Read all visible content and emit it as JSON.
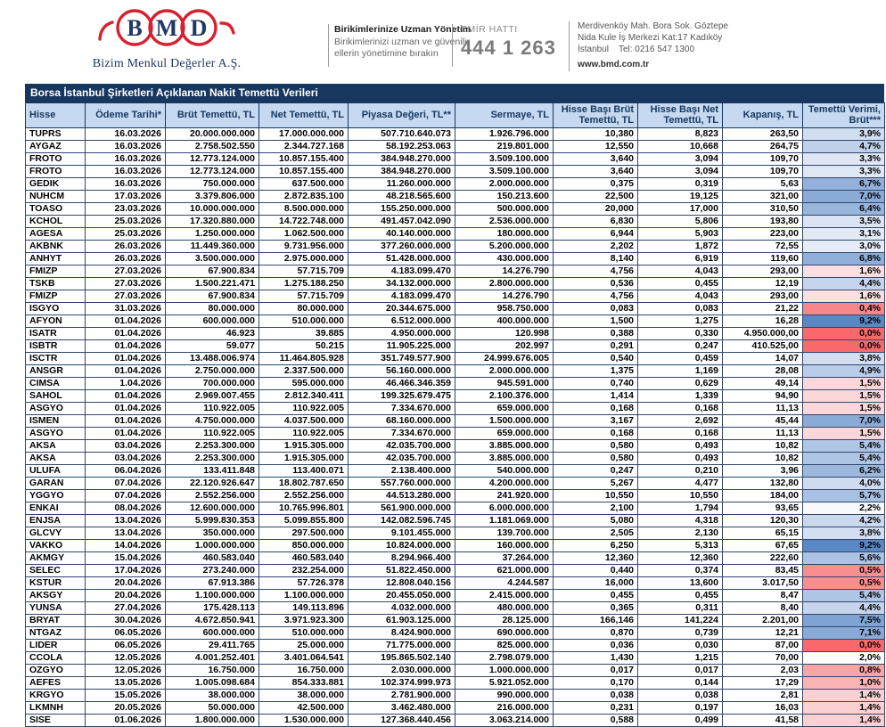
{
  "brand": {
    "logo_letters": [
      "B",
      "M",
      "D"
    ],
    "company": "Bizim Menkul Değerler A.Ş.",
    "brand_red": "#D6202F",
    "brand_navy": "#1F3864",
    "tagline_title": "Birikimlerinize Uzman Yönetim",
    "tagline_line1": "Birikimlerinizi uzman ve güvenilir",
    "tagline_line2": "ellerin yönetimine bırakın",
    "order_line_label": "EMİR HATTI",
    "order_line_number": "444 1 263",
    "address_line1": "Merdivenköy Mah. Bora Sok. Göztepe",
    "address_line2": "Nida Kule İş Merkezi Kat:17 Kadıköy",
    "address_line3": "İstanbul    Tel: 0216 547 1300",
    "website": "www.bmd.com.tr"
  },
  "table": {
    "title": "Borsa İstanbul Şirketleri Açıklanan Nakit Temettü Verileri",
    "columns": [
      "Hisse",
      "Ödeme Tarihi*",
      "Brüt Temettü, TL",
      "Net Temettü, TL",
      "Piyasa Değeri, TL**",
      "Sermaye, TL",
      "Hisse Başı Brüt Temettü, TL",
      "Hisse Başı Net Temettü, TL",
      "Kapanış, TL",
      "Temettü Verimi, Brüt***"
    ],
    "yield_scale": {
      "low_color": "#F8696B",
      "mid_color": "#FCFCFF",
      "high_color": "#5988C5",
      "min_value": 0.0,
      "mid_value": 2.0,
      "max_value": 9.2
    },
    "rows": [
      {
        "hisse": "TUPRS",
        "odeme": "16.03.2026",
        "brut": "20.000.000.000",
        "net": "17.000.000.000",
        "piyasa": "507.710.640.073",
        "sermaye": "1.926.796.000",
        "hb_brut": "10,380",
        "hb_net": "8,823",
        "kapanis": "263,50",
        "verim": "3,9%"
      },
      {
        "hisse": "AYGAZ",
        "odeme": "16.03.2026",
        "brut": "2.758.502.550",
        "net": "2.344.727.168",
        "piyasa": "58.192.253.063",
        "sermaye": "219.801.000",
        "hb_brut": "12,550",
        "hb_net": "10,668",
        "kapanis": "264,75",
        "verim": "4,7%"
      },
      {
        "hisse": "FROTO",
        "odeme": "16.03.2026",
        "brut": "12.773.124.000",
        "net": "10.857.155.400",
        "piyasa": "384.948.270.000",
        "sermaye": "3.509.100.000",
        "hb_brut": "3,640",
        "hb_net": "3,094",
        "kapanis": "109,70",
        "verim": "3,3%"
      },
      {
        "hisse": "FROTO",
        "odeme": "16.03.2026",
        "brut": "12.773.124.000",
        "net": "10.857.155.400",
        "piyasa": "384.948.270.000",
        "sermaye": "3.509.100.000",
        "hb_brut": "3,640",
        "hb_net": "3,094",
        "kapanis": "109,70",
        "verim": "3,3%"
      },
      {
        "hisse": "GEDIK",
        "odeme": "16.03.2026",
        "brut": "750.000.000",
        "net": "637.500.000",
        "piyasa": "11.260.000.000",
        "sermaye": "2.000.000.000",
        "hb_brut": "0,375",
        "hb_net": "0,319",
        "kapanis": "5,63",
        "verim": "6,7%"
      },
      {
        "hisse": "NUHCM",
        "odeme": "17.03.2026",
        "brut": "3.379.806.000",
        "net": "2.872.835.100",
        "piyasa": "48.218.565.600",
        "sermaye": "150.213.600",
        "hb_brut": "22,500",
        "hb_net": "19,125",
        "kapanis": "321,00",
        "verim": "7,0%"
      },
      {
        "hisse": "TOASO",
        "odeme": "23.03.2026",
        "brut": "10.000.000.000",
        "net": "8.500.000.000",
        "piyasa": "155.250.000.000",
        "sermaye": "500.000.000",
        "hb_brut": "20,000",
        "hb_net": "17,000",
        "kapanis": "310,50",
        "verim": "6,4%"
      },
      {
        "hisse": "KCHOL",
        "odeme": "25.03.2026",
        "brut": "17.320.880.000",
        "net": "14.722.748.000",
        "piyasa": "491.457.042.090",
        "sermaye": "2.536.000.000",
        "hb_brut": "6,830",
        "hb_net": "5,806",
        "kapanis": "193,80",
        "verim": "3,5%"
      },
      {
        "hisse": "AGESA",
        "odeme": "25.03.2026",
        "brut": "1.250.000.000",
        "net": "1.062.500.000",
        "piyasa": "40.140.000.000",
        "sermaye": "180.000.000",
        "hb_brut": "6,944",
        "hb_net": "5,903",
        "kapanis": "223,00",
        "verim": "3,1%"
      },
      {
        "hisse": "AKBNK",
        "odeme": "26.03.2026",
        "brut": "11.449.360.000",
        "net": "9.731.956.000",
        "piyasa": "377.260.000.000",
        "sermaye": "5.200.000.000",
        "hb_brut": "2,202",
        "hb_net": "1,872",
        "kapanis": "72,55",
        "verim": "3,0%"
      },
      {
        "hisse": "ANHYT",
        "odeme": "26.03.2026",
        "brut": "3.500.000.000",
        "net": "2.975.000.000",
        "piyasa": "51.428.000.000",
        "sermaye": "430.000.000",
        "hb_brut": "8,140",
        "hb_net": "6,919",
        "kapanis": "119,60",
        "verim": "6,8%"
      },
      {
        "hisse": "FMIZP",
        "odeme": "27.03.2026",
        "brut": "67.900.834",
        "net": "57.715.709",
        "piyasa": "4.183.099.470",
        "sermaye": "14.276.790",
        "hb_brut": "4,756",
        "hb_net": "4,043",
        "kapanis": "293,00",
        "verim": "1,6%"
      },
      {
        "hisse": "TSKB",
        "odeme": "27.03.2026",
        "brut": "1.500.221.471",
        "net": "1.275.188.250",
        "piyasa": "34.132.000.000",
        "sermaye": "2.800.000.000",
        "hb_brut": "0,536",
        "hb_net": "0,455",
        "kapanis": "12,19",
        "verim": "4,4%"
      },
      {
        "hisse": "FMIZP",
        "odeme": "27.03.2026",
        "brut": "67.900.834",
        "net": "57.715.709",
        "piyasa": "4.183.099.470",
        "sermaye": "14.276.790",
        "hb_brut": "4,756",
        "hb_net": "4,043",
        "kapanis": "293,00",
        "verim": "1,6%"
      },
      {
        "hisse": "ISGYO",
        "odeme": "31.03.2026",
        "brut": "80.000.000",
        "net": "80.000.000",
        "piyasa": "20.344.675.000",
        "sermaye": "958.750.000",
        "hb_brut": "0,083",
        "hb_net": "0,083",
        "kapanis": "21,22",
        "verim": "0,4%"
      },
      {
        "hisse": "AFYON",
        "odeme": "01.04.2026",
        "brut": "600.000.000",
        "net": "510.000.000",
        "piyasa": "6.512.000.000",
        "sermaye": "400.000.000",
        "hb_brut": "1,500",
        "hb_net": "1,275",
        "kapanis": "16,28",
        "verim": "9,2%"
      },
      {
        "hisse": "ISATR",
        "odeme": "01.04.2026",
        "brut": "46.923",
        "net": "39.885",
        "piyasa": "4.950.000.000",
        "sermaye": "120.998",
        "hb_brut": "0,388",
        "hb_net": "0,330",
        "kapanis": "4.950.000,00",
        "verim": "0,0%"
      },
      {
        "hisse": "ISBTR",
        "odeme": "01.04.2026",
        "brut": "59.077",
        "net": "50.215",
        "piyasa": "11.905.225.000",
        "sermaye": "202.997",
        "hb_brut": "0,291",
        "hb_net": "0,247",
        "kapanis": "410.525,00",
        "verim": "0,0%"
      },
      {
        "hisse": "ISCTR",
        "odeme": "01.04.2026",
        "brut": "13.488.006.974",
        "net": "11.464.805.928",
        "piyasa": "351.749.577.900",
        "sermaye": "24.999.676.005",
        "hb_brut": "0,540",
        "hb_net": "0,459",
        "kapanis": "14,07",
        "verim": "3,8%"
      },
      {
        "hisse": "ANSGR",
        "odeme": "01.04.2026",
        "brut": "2.750.000.000",
        "net": "2.337.500.000",
        "piyasa": "56.160.000.000",
        "sermaye": "2.000.000.000",
        "hb_brut": "1,375",
        "hb_net": "1,169",
        "kapanis": "28,08",
        "verim": "4,9%"
      },
      {
        "hisse": "CIMSA",
        "odeme": "1.04.2026",
        "brut": "700.000.000",
        "net": "595.000.000",
        "piyasa": "46.466.346.359",
        "sermaye": "945.591.000",
        "hb_brut": "0,740",
        "hb_net": "0,629",
        "kapanis": "49,14",
        "verim": "1,5%"
      },
      {
        "hisse": "SAHOL",
        "odeme": "01.04.2026",
        "brut": "2.969.007.455",
        "net": "2.812.340.411",
        "piyasa": "199.325.679.475",
        "sermaye": "2.100.376.000",
        "hb_brut": "1,414",
        "hb_net": "1,339",
        "kapanis": "94,90",
        "verim": "1,5%"
      },
      {
        "hisse": "ASGYO",
        "odeme": "01.04.2026",
        "brut": "110.922.005",
        "net": "110.922.005",
        "piyasa": "7.334.670.000",
        "sermaye": "659.000.000",
        "hb_brut": "0,168",
        "hb_net": "0,168",
        "kapanis": "11,13",
        "verim": "1,5%"
      },
      {
        "hisse": "ISMEN",
        "odeme": "01.04.2026",
        "brut": "4.750.000.000",
        "net": "4.037.500.000",
        "piyasa": "68.160.000.000",
        "sermaye": "1.500.000.000",
        "hb_brut": "3,167",
        "hb_net": "2,692",
        "kapanis": "45,44",
        "verim": "7,0%"
      },
      {
        "hisse": "ASGYO",
        "odeme": "01.04.2026",
        "brut": "110.922.005",
        "net": "110.922.005",
        "piyasa": "7.334.670.000",
        "sermaye": "659.000.000",
        "hb_brut": "0,168",
        "hb_net": "0,168",
        "kapanis": "11,13",
        "verim": "1,5%"
      },
      {
        "hisse": "AKSA",
        "odeme": "03.04.2026",
        "brut": "2.253.300.000",
        "net": "1.915.305.000",
        "piyasa": "42.035.700.000",
        "sermaye": "3.885.000.000",
        "hb_brut": "0,580",
        "hb_net": "0,493",
        "kapanis": "10,82",
        "verim": "5,4%"
      },
      {
        "hisse": "AKSA",
        "odeme": "03.04.2026",
        "brut": "2.253.300.000",
        "net": "1.915.305.000",
        "piyasa": "42.035.700.000",
        "sermaye": "3.885.000.000",
        "hb_brut": "0,580",
        "hb_net": "0,493",
        "kapanis": "10,82",
        "verim": "5,4%"
      },
      {
        "hisse": "ULUFA",
        "odeme": "06.04.2026",
        "brut": "133.411.848",
        "net": "113.400.071",
        "piyasa": "2.138.400.000",
        "sermaye": "540.000.000",
        "hb_brut": "0,247",
        "hb_net": "0,210",
        "kapanis": "3,96",
        "verim": "6,2%"
      },
      {
        "hisse": "GARAN",
        "odeme": "07.04.2026",
        "brut": "22.120.926.647",
        "net": "18.802.787.650",
        "piyasa": "557.760.000.000",
        "sermaye": "4.200.000.000",
        "hb_brut": "5,267",
        "hb_net": "4,477",
        "kapanis": "132,80",
        "verim": "4,0%"
      },
      {
        "hisse": "YGGYO",
        "odeme": "07.04.2026",
        "brut": "2.552.256.000",
        "net": "2.552.256.000",
        "piyasa": "44.513.280.000",
        "sermaye": "241.920.000",
        "hb_brut": "10,550",
        "hb_net": "10,550",
        "kapanis": "184,00",
        "verim": "5,7%"
      },
      {
        "hisse": "ENKAI",
        "odeme": "08.04.2026",
        "brut": "12.600.000.000",
        "net": "10.765.996.801",
        "piyasa": "561.900.000.000",
        "sermaye": "6.000.000.000",
        "hb_brut": "2,100",
        "hb_net": "1,794",
        "kapanis": "93,65",
        "verim": "2,2%"
      },
      {
        "hisse": "ENJSA",
        "odeme": "13.04.2026",
        "brut": "5.999.830.353",
        "net": "5.099.855.800",
        "piyasa": "142.082.596.745",
        "sermaye": "1.181.069.000",
        "hb_brut": "5,080",
        "hb_net": "4,318",
        "kapanis": "120,30",
        "verim": "4,2%"
      },
      {
        "hisse": "GLCVY",
        "odeme": "13.04.2026",
        "brut": "350.000.000",
        "net": "297.500.000",
        "piyasa": "9.101.455.000",
        "sermaye": "139.700.000",
        "hb_brut": "2,505",
        "hb_net": "2,130",
        "kapanis": "65,15",
        "verim": "3,8%"
      },
      {
        "hisse": "VAKKO",
        "odeme": "14.04.2026",
        "brut": "1.000.000.000",
        "net": "850.000.000",
        "piyasa": "10.824.000.000",
        "sermaye": "160.000.000",
        "hb_brut": "6,250",
        "hb_net": "5,313",
        "kapanis": "67,65",
        "verim": "9,2%"
      },
      {
        "hisse": "AKMGY",
        "odeme": "15.04.2026",
        "brut": "460.583.040",
        "net": "460.583.040",
        "piyasa": "8.294.966.400",
        "sermaye": "37.264.000",
        "hb_brut": "12,360",
        "hb_net": "12,360",
        "kapanis": "222,60",
        "verim": "5,6%"
      },
      {
        "hisse": "SELEC",
        "odeme": "17.04.2026",
        "brut": "273.240.000",
        "net": "232.254.000",
        "piyasa": "51.822.450.000",
        "sermaye": "621.000.000",
        "hb_brut": "0,440",
        "hb_net": "0,374",
        "kapanis": "83,45",
        "verim": "0,5%"
      },
      {
        "hisse": "KSTUR",
        "odeme": "20.04.2026",
        "brut": "67.913.386",
        "net": "57.726.378",
        "piyasa": "12.808.040.156",
        "sermaye": "4.244.587",
        "hb_brut": "16,000",
        "hb_net": "13,600",
        "kapanis": "3.017,50",
        "verim": "0,5%"
      },
      {
        "hisse": "AKSGY",
        "odeme": "20.04.2026",
        "brut": "1.100.000.000",
        "net": "1.100.000.000",
        "piyasa": "20.455.050.000",
        "sermaye": "2.415.000.000",
        "hb_brut": "0,455",
        "hb_net": "0,455",
        "kapanis": "8,47",
        "verim": "5,4%"
      },
      {
        "hisse": "YUNSA",
        "odeme": "27.04.2026",
        "brut": "175.428.113",
        "net": "149.113.896",
        "piyasa": "4.032.000.000",
        "sermaye": "480.000.000",
        "hb_brut": "0,365",
        "hb_net": "0,311",
        "kapanis": "8,40",
        "verim": "4,4%"
      },
      {
        "hisse": "BRYAT",
        "odeme": "30.04.2026",
        "brut": "4.672.850.941",
        "net": "3.971.923.300",
        "piyasa": "61.903.125.000",
        "sermaye": "28.125.000",
        "hb_brut": "166,146",
        "hb_net": "141,224",
        "kapanis": "2.201,00",
        "verim": "7,5%"
      },
      {
        "hisse": "NTGAZ",
        "odeme": "06.05.2026",
        "brut": "600.000.000",
        "net": "510.000.000",
        "piyasa": "8.424.900.000",
        "sermaye": "690.000.000",
        "hb_brut": "0,870",
        "hb_net": "0,739",
        "kapanis": "12,21",
        "verim": "7,1%"
      },
      {
        "hisse": "LIDER",
        "odeme": "06.05.2026",
        "brut": "29.411.765",
        "net": "25.000.000",
        "piyasa": "71.775.000.000",
        "sermaye": "825.000.000",
        "hb_brut": "0,036",
        "hb_net": "0,030",
        "kapanis": "87,00",
        "verim": "0,0%"
      },
      {
        "hisse": "CCOLA",
        "odeme": "12.05.2026",
        "brut": "4.001.252.401",
        "net": "3.401.064.541",
        "piyasa": "195.865.502.140",
        "sermaye": "2.798.079.000",
        "hb_brut": "1,430",
        "hb_net": "1,215",
        "kapanis": "70,00",
        "verim": "2,0%"
      },
      {
        "hisse": "OZGYO",
        "odeme": "12.05.2026",
        "brut": "16.750.000",
        "net": "16.750.000",
        "piyasa": "2.030.000.000",
        "sermaye": "1.000.000.000",
        "hb_brut": "0,017",
        "hb_net": "0,017",
        "kapanis": "2,03",
        "verim": "0,8%"
      },
      {
        "hisse": "AEFES",
        "odeme": "13.05.2026",
        "brut": "1.005.098.684",
        "net": "854.333.881",
        "piyasa": "102.374.999.973",
        "sermaye": "5.921.052.000",
        "hb_brut": "0,170",
        "hb_net": "0,144",
        "kapanis": "17,29",
        "verim": "1,0%"
      },
      {
        "hisse": "KRGYO",
        "odeme": "15.05.2026",
        "brut": "38.000.000",
        "net": "38.000.000",
        "piyasa": "2.781.900.000",
        "sermaye": "990.000.000",
        "hb_brut": "0,038",
        "hb_net": "0,038",
        "kapanis": "2,81",
        "verim": "1,4%"
      },
      {
        "hisse": "LKMNH",
        "odeme": "20.05.2026",
        "brut": "50.000.000",
        "net": "42.500.000",
        "piyasa": "3.462.480.000",
        "sermaye": "216.000.000",
        "hb_brut": "0,231",
        "hb_net": "0,197",
        "kapanis": "16,03",
        "verim": "1,4%"
      },
      {
        "hisse": "SISE",
        "odeme": "01.06.2026",
        "brut": "1.800.000.000",
        "net": "1.530.000.000",
        "piyasa": "127.368.440.456",
        "sermaye": "3.063.214.000",
        "hb_brut": "0,588",
        "hb_net": "0,499",
        "kapanis": "41,58",
        "verim": "1,4%"
      }
    ]
  }
}
